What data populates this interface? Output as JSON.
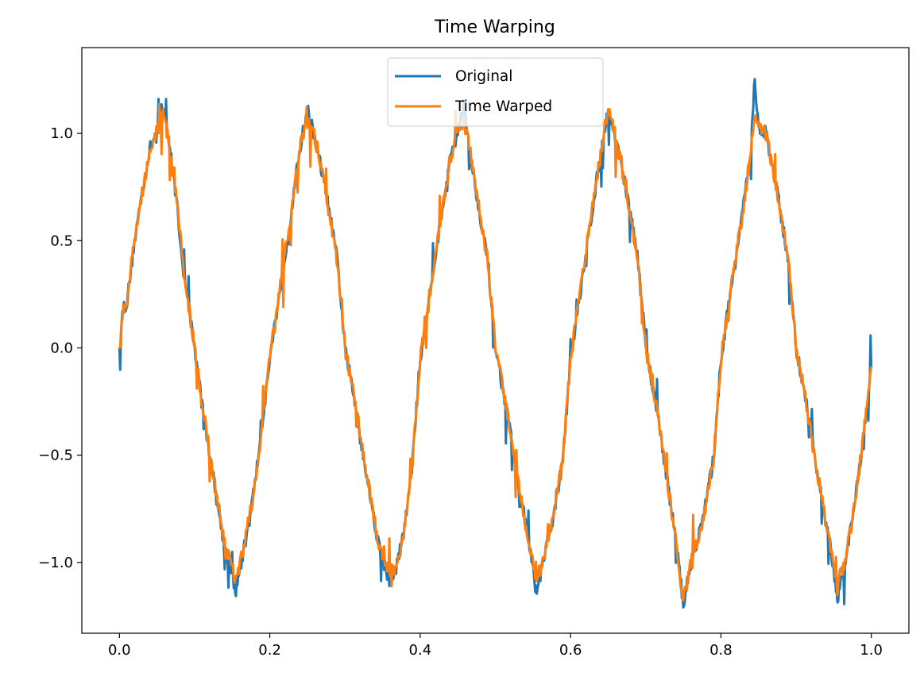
{
  "chart_data": {
    "type": "line",
    "title": "Time Warping",
    "xlabel": "",
    "ylabel": "",
    "xlim": [
      -0.05,
      1.05
    ],
    "ylim": [
      -1.33,
      1.4
    ],
    "xticks": [
      0.0,
      0.2,
      0.4,
      0.6,
      0.8,
      1.0
    ],
    "xtick_labels": [
      "0.0",
      "0.2",
      "0.4",
      "0.6",
      "0.8",
      "1.0"
    ],
    "yticks": [
      -1.0,
      -0.5,
      0.0,
      0.5,
      1.0
    ],
    "ytick_labels": [
      "−1.0",
      "−0.5",
      "0.0",
      "0.5",
      "1.0"
    ],
    "grid": false,
    "legend_position": "upper-center",
    "signal": {
      "frequency": 5,
      "amplitude": 1.0,
      "x_start": 0.0,
      "x_end": 1.0,
      "end_value": -0.09
    },
    "series": [
      {
        "name": "Original",
        "color": "#1f77b4",
        "points": [
          [
            0.0,
            0.0
          ],
          [
            0.005,
            0.19
          ],
          [
            0.01,
            0.21
          ],
          [
            0.02,
            0.5
          ],
          [
            0.03,
            0.72
          ],
          [
            0.04,
            0.92
          ],
          [
            0.05,
            1.02
          ],
          [
            0.058,
            1.13
          ],
          [
            0.065,
            0.98
          ],
          [
            0.075,
            0.72
          ],
          [
            0.085,
            0.36
          ],
          [
            0.1,
            0.0
          ],
          [
            0.11,
            -0.27
          ],
          [
            0.125,
            -0.61
          ],
          [
            0.14,
            -0.93
          ],
          [
            0.155,
            -1.13
          ],
          [
            0.165,
            -0.95
          ],
          [
            0.175,
            -0.76
          ],
          [
            0.185,
            -0.5
          ],
          [
            0.2,
            -0.05
          ],
          [
            0.215,
            0.31
          ],
          [
            0.23,
            0.67
          ],
          [
            0.24,
            0.93
          ],
          [
            0.25,
            1.11
          ],
          [
            0.26,
            0.98
          ],
          [
            0.275,
            0.72
          ],
          [
            0.29,
            0.4
          ],
          [
            0.3,
            0.0
          ],
          [
            0.315,
            -0.29
          ],
          [
            0.33,
            -0.62
          ],
          [
            0.345,
            -0.92
          ],
          [
            0.36,
            -1.1
          ],
          [
            0.37,
            -1.0
          ],
          [
            0.38,
            -0.82
          ],
          [
            0.39,
            -0.52
          ],
          [
            0.4,
            -0.05
          ],
          [
            0.415,
            0.31
          ],
          [
            0.43,
            0.66
          ],
          [
            0.44,
            0.88
          ],
          [
            0.45,
            1.02
          ],
          [
            0.458,
            1.13
          ],
          [
            0.465,
            0.93
          ],
          [
            0.475,
            0.72
          ],
          [
            0.49,
            0.4
          ],
          [
            0.5,
            0.0
          ],
          [
            0.515,
            -0.29
          ],
          [
            0.53,
            -0.62
          ],
          [
            0.545,
            -0.92
          ],
          [
            0.555,
            -1.15
          ],
          [
            0.565,
            -0.98
          ],
          [
            0.575,
            -0.82
          ],
          [
            0.59,
            -0.52
          ],
          [
            0.6,
            -0.05
          ],
          [
            0.615,
            0.31
          ],
          [
            0.63,
            0.67
          ],
          [
            0.64,
            0.9
          ],
          [
            0.65,
            1.1
          ],
          [
            0.66,
            0.98
          ],
          [
            0.675,
            0.72
          ],
          [
            0.69,
            0.4
          ],
          [
            0.7,
            0.0
          ],
          [
            0.715,
            -0.29
          ],
          [
            0.73,
            -0.65
          ],
          [
            0.74,
            -0.9
          ],
          [
            0.75,
            -1.2
          ],
          [
            0.76,
            -1.0
          ],
          [
            0.775,
            -0.82
          ],
          [
            0.79,
            -0.52
          ],
          [
            0.8,
            -0.05
          ],
          [
            0.815,
            0.31
          ],
          [
            0.83,
            0.66
          ],
          [
            0.84,
            0.92
          ],
          [
            0.845,
            1.27
          ],
          [
            0.85,
            1.02
          ],
          [
            0.86,
            1.0
          ],
          [
            0.875,
            0.72
          ],
          [
            0.89,
            0.4
          ],
          [
            0.9,
            0.0
          ],
          [
            0.915,
            -0.29
          ],
          [
            0.93,
            -0.62
          ],
          [
            0.945,
            -0.92
          ],
          [
            0.955,
            -1.17
          ],
          [
            0.965,
            -1.0
          ],
          [
            0.975,
            -0.8
          ],
          [
            0.99,
            -0.4
          ],
          [
            1.0,
            -0.09
          ]
        ]
      },
      {
        "name": "Time Warped",
        "color": "#ff7f0e",
        "points": [
          [
            0.0,
            0.0
          ],
          [
            0.005,
            0.17
          ],
          [
            0.01,
            0.23
          ],
          [
            0.02,
            0.5
          ],
          [
            0.03,
            0.72
          ],
          [
            0.04,
            0.92
          ],
          [
            0.05,
            1.01
          ],
          [
            0.058,
            1.1
          ],
          [
            0.065,
            0.98
          ],
          [
            0.075,
            0.72
          ],
          [
            0.085,
            0.38
          ],
          [
            0.1,
            0.0
          ],
          [
            0.11,
            -0.26
          ],
          [
            0.125,
            -0.6
          ],
          [
            0.14,
            -0.92
          ],
          [
            0.155,
            -1.08
          ],
          [
            0.165,
            -0.94
          ],
          [
            0.175,
            -0.75
          ],
          [
            0.185,
            -0.5
          ],
          [
            0.2,
            -0.05
          ],
          [
            0.215,
            0.31
          ],
          [
            0.23,
            0.67
          ],
          [
            0.24,
            0.93
          ],
          [
            0.25,
            1.05
          ],
          [
            0.26,
            0.98
          ],
          [
            0.275,
            0.72
          ],
          [
            0.29,
            0.4
          ],
          [
            0.3,
            0.0
          ],
          [
            0.315,
            -0.29
          ],
          [
            0.33,
            -0.62
          ],
          [
            0.345,
            -0.92
          ],
          [
            0.36,
            -1.06
          ],
          [
            0.37,
            -1.0
          ],
          [
            0.38,
            -0.82
          ],
          [
            0.39,
            -0.52
          ],
          [
            0.4,
            -0.05
          ],
          [
            0.415,
            0.31
          ],
          [
            0.43,
            0.66
          ],
          [
            0.44,
            0.88
          ],
          [
            0.45,
            1.02
          ],
          [
            0.458,
            1.05
          ],
          [
            0.465,
            0.95
          ],
          [
            0.475,
            0.72
          ],
          [
            0.49,
            0.4
          ],
          [
            0.5,
            0.0
          ],
          [
            0.515,
            -0.29
          ],
          [
            0.53,
            -0.62
          ],
          [
            0.545,
            -0.92
          ],
          [
            0.555,
            -1.08
          ],
          [
            0.565,
            -0.98
          ],
          [
            0.575,
            -0.82
          ],
          [
            0.59,
            -0.52
          ],
          [
            0.6,
            -0.05
          ],
          [
            0.615,
            0.31
          ],
          [
            0.63,
            0.67
          ],
          [
            0.64,
            0.9
          ],
          [
            0.65,
            1.12
          ],
          [
            0.66,
            0.98
          ],
          [
            0.675,
            0.72
          ],
          [
            0.69,
            0.4
          ],
          [
            0.7,
            0.0
          ],
          [
            0.715,
            -0.29
          ],
          [
            0.73,
            -0.65
          ],
          [
            0.74,
            -0.9
          ],
          [
            0.75,
            -1.18
          ],
          [
            0.76,
            -1.0
          ],
          [
            0.775,
            -0.82
          ],
          [
            0.79,
            -0.52
          ],
          [
            0.8,
            -0.05
          ],
          [
            0.815,
            0.31
          ],
          [
            0.83,
            0.66
          ],
          [
            0.84,
            0.92
          ],
          [
            0.845,
            1.1
          ],
          [
            0.85,
            1.02
          ],
          [
            0.86,
            1.0
          ],
          [
            0.875,
            0.72
          ],
          [
            0.89,
            0.4
          ],
          [
            0.9,
            0.0
          ],
          [
            0.915,
            -0.29
          ],
          [
            0.93,
            -0.62
          ],
          [
            0.945,
            -0.92
          ],
          [
            0.955,
            -1.1
          ],
          [
            0.965,
            -1.0
          ],
          [
            0.975,
            -0.8
          ],
          [
            0.99,
            -0.4
          ],
          [
            1.0,
            -0.09
          ]
        ]
      }
    ]
  }
}
